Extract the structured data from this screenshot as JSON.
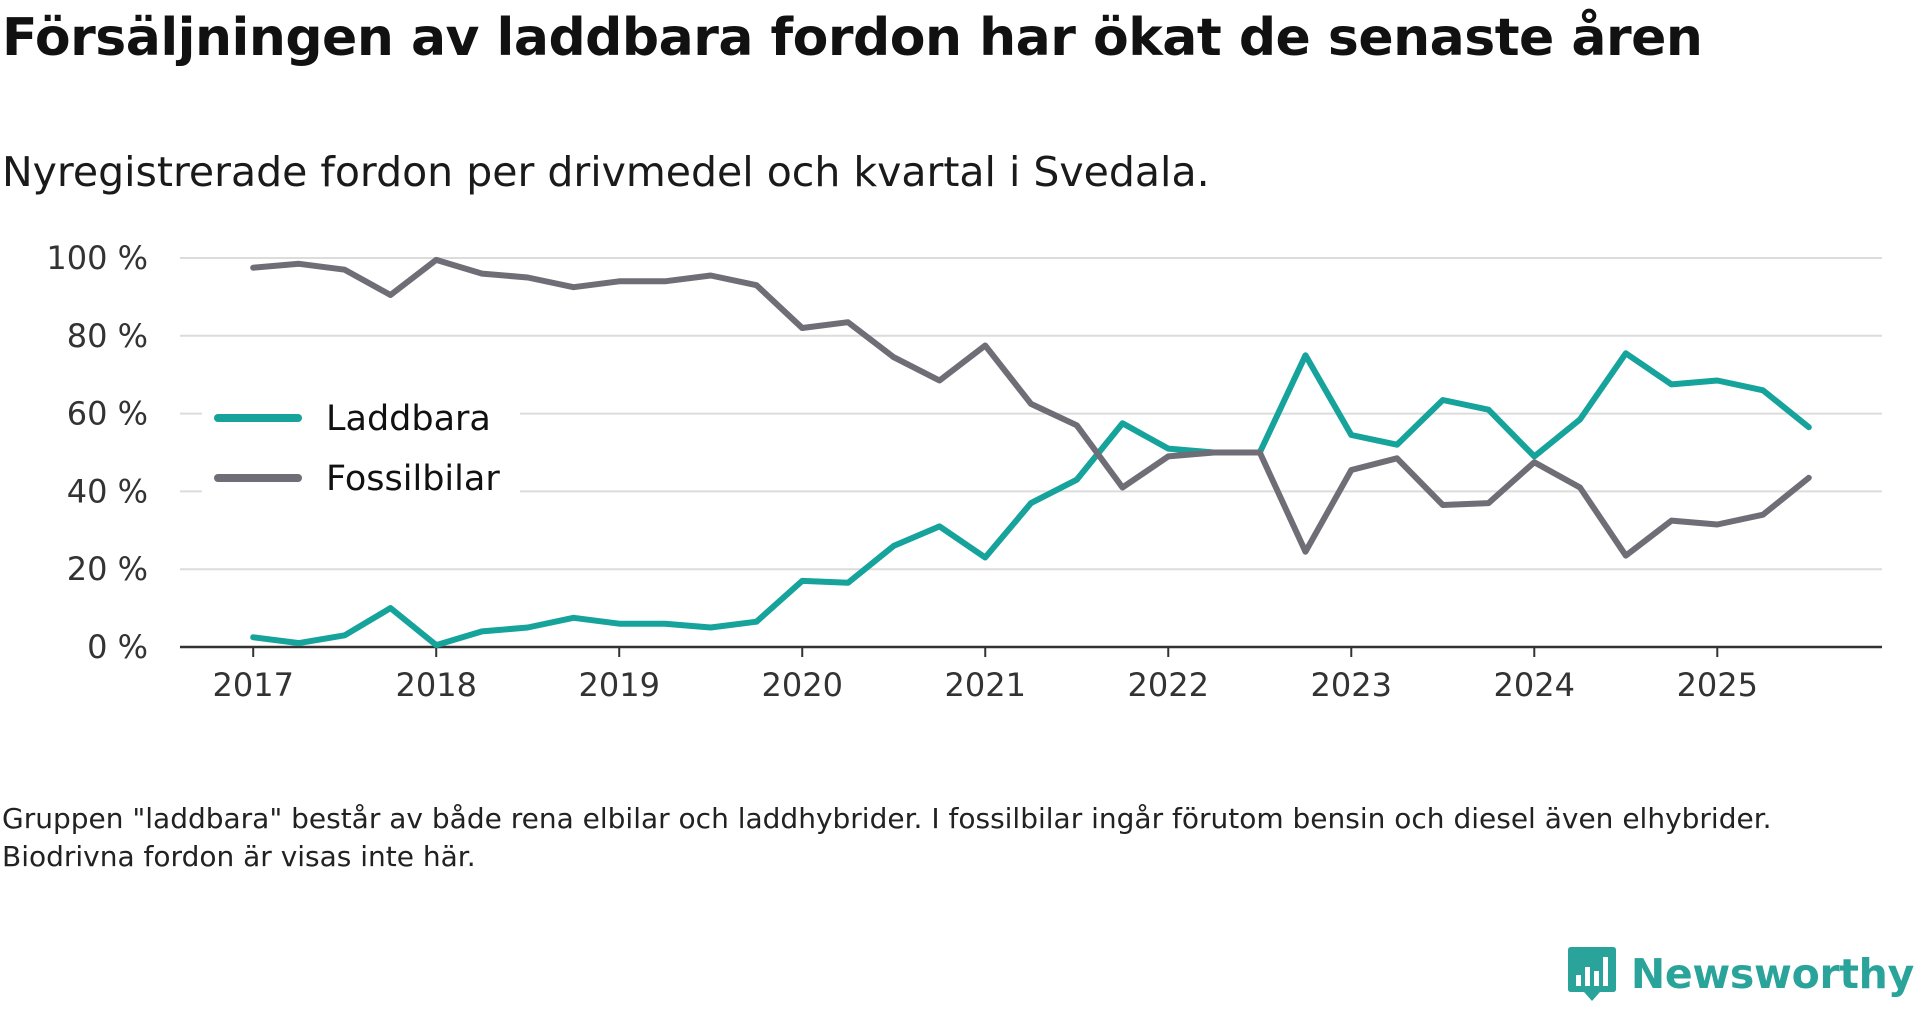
{
  "title": "Försäljningen av laddbara fordon har ökat de senaste åren",
  "subtitle": "Nyregistrerade fordon per drivmedel och kvartal i Svedala.",
  "footnote": "Gruppen \"laddbara\" består av både rena elbilar och laddhybrider. I fossilbilar ingår förutom bensin och diesel även elhybrider. Biodrivna fordon är visas inte här.",
  "brand": {
    "name": "Newsworthy",
    "logo_icon": "bar-chart-icon",
    "color": "#2aa39a"
  },
  "chart_data": {
    "type": "line",
    "title": "Försäljningen av laddbara fordon har ökat de senaste åren",
    "subtitle": "Nyregistrerade fordon per drivmedel och kvartal i Svedala.",
    "xlabel": "",
    "ylabel": "",
    "x_start": 2017,
    "x_step": 0.25,
    "x_ticks": [
      2017,
      2018,
      2019,
      2020,
      2021,
      2022,
      2023,
      2024,
      2025
    ],
    "x_tick_labels": [
      "2017",
      "2018",
      "2019",
      "2020",
      "2021",
      "2022",
      "2023",
      "2024",
      "2025"
    ],
    "xlim": [
      2016.6,
      2025.9
    ],
    "ylim": [
      0,
      100
    ],
    "y_ticks": [
      0,
      20,
      40,
      60,
      80,
      100
    ],
    "y_tick_labels": [
      "0 %",
      "20 %",
      "40 %",
      "60 %",
      "80 %",
      "100 %"
    ],
    "grid": true,
    "legend_position": "left-middle",
    "series": [
      {
        "name": "Laddbara",
        "color": "#16a39b",
        "values": [
          2.5,
          1,
          3,
          10,
          0.5,
          4,
          5,
          7.5,
          6,
          6,
          5,
          6.5,
          17,
          16.5,
          26,
          31,
          23,
          37,
          43,
          57.5,
          51,
          50,
          50,
          75,
          54.5,
          52,
          63.5,
          61,
          49,
          58.5,
          75.5,
          67.5,
          68.5,
          66,
          56.5
        ]
      },
      {
        "name": "Fossilbilar",
        "color": "#6f6e76",
        "values": [
          97.5,
          98.5,
          97,
          90.5,
          99.5,
          96,
          95,
          92.5,
          94,
          94,
          95.5,
          93,
          82,
          83.5,
          74.5,
          68.5,
          77.5,
          62.5,
          57,
          41,
          49,
          50,
          50,
          24.5,
          45.5,
          48.5,
          36.5,
          37,
          47.5,
          41,
          23.5,
          32.5,
          31.5,
          34,
          43.5
        ]
      }
    ]
  }
}
